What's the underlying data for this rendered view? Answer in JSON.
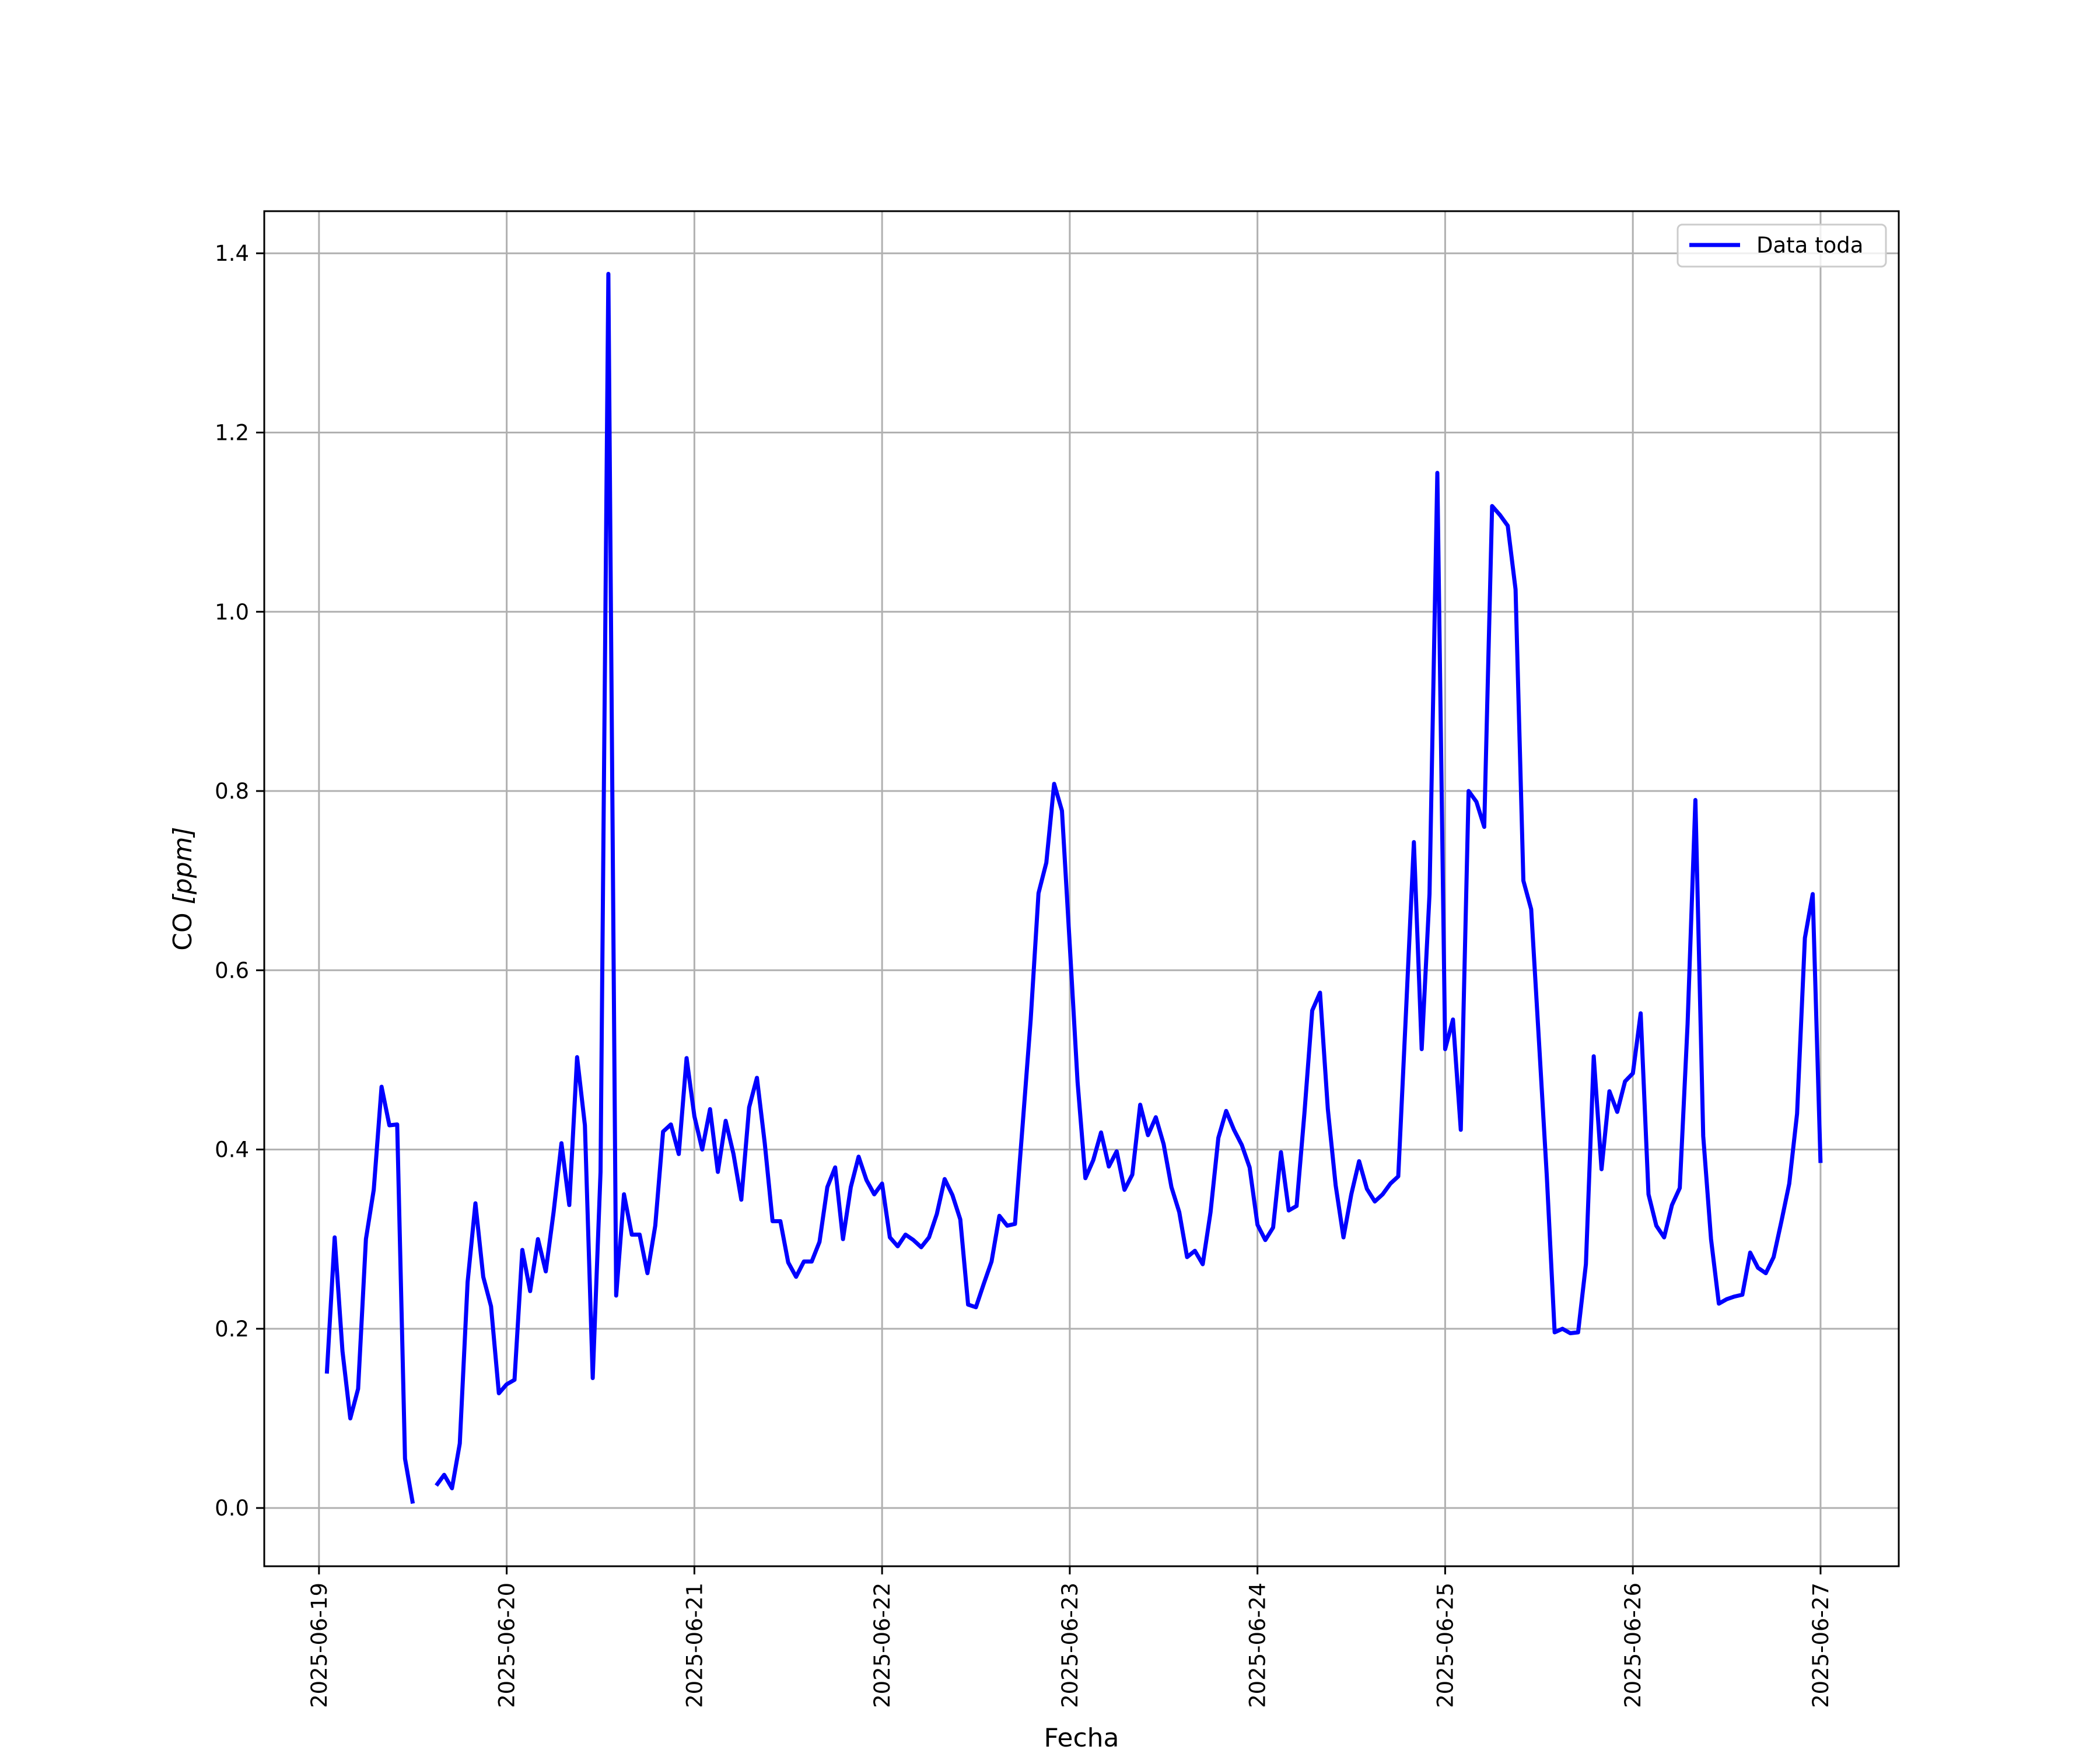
{
  "chart_data": {
    "type": "line",
    "title": "",
    "xlabel": "Fecha",
    "ylabel_main": "CO ",
    "ylabel_unit": "[ppm]",
    "x_ticks": [
      "2025-06-19",
      "2025-06-20",
      "2025-06-21",
      "2025-06-22",
      "2025-06-23",
      "2025-06-24",
      "2025-06-25",
      "2025-06-26",
      "2025-06-27"
    ],
    "y_ticks": [
      "0.0",
      "0.2",
      "0.4",
      "0.6",
      "0.8",
      "1.0",
      "1.2",
      "1.4"
    ],
    "xlim": [
      "2025-06-18 17:00",
      "2025-06-27 10:00"
    ],
    "ylim": [
      -0.065,
      1.447
    ],
    "grid": true,
    "legend_position": "top-right",
    "line_color": "#0000ff",
    "series": [
      {
        "name": "Data toda",
        "color": "#0000ff",
        "points": [
          [
            "2025-06-19 01:00",
            0.15
          ],
          [
            "2025-06-19 02:00",
            0.302
          ],
          [
            "2025-06-19 03:00",
            0.175
          ],
          [
            "2025-06-19 04:00",
            0.1
          ],
          [
            "2025-06-19 05:00",
            0.133
          ],
          [
            "2025-06-19 06:00",
            0.3
          ],
          [
            "2025-06-19 07:00",
            0.355
          ],
          [
            "2025-06-19 08:00",
            0.47
          ],
          [
            "2025-06-19 09:00",
            0.427
          ],
          [
            "2025-06-19 10:00",
            0.428
          ],
          [
            "2025-06-19 11:00",
            0.055
          ],
          [
            "2025-06-19 12:00",
            0.005
          ],
          [
            "2025-06-19 15:00",
            null
          ],
          [
            "2025-06-19 15:00",
            0.025
          ],
          [
            "2025-06-19 16:00",
            0.037
          ],
          [
            "2025-06-19 17:00",
            0.022
          ],
          [
            "2025-06-19 18:00",
            0.072
          ],
          [
            "2025-06-19 19:00",
            0.252
          ],
          [
            "2025-06-19 20:00",
            0.34
          ],
          [
            "2025-06-19 21:00",
            0.258
          ],
          [
            "2025-06-19 22:00",
            0.225
          ],
          [
            "2025-06-19 23:00",
            0.128
          ],
          [
            "2025-06-20 00:00",
            0.138
          ],
          [
            "2025-06-20 01:00",
            0.143
          ],
          [
            "2025-06-20 02:00",
            0.288
          ],
          [
            "2025-06-20 03:00",
            0.242
          ],
          [
            "2025-06-20 04:00",
            0.3
          ],
          [
            "2025-06-20 05:00",
            0.264
          ],
          [
            "2025-06-20 06:00",
            0.33
          ],
          [
            "2025-06-20 07:00",
            0.407
          ],
          [
            "2025-06-20 08:00",
            0.338
          ],
          [
            "2025-06-20 09:00",
            0.503
          ],
          [
            "2025-06-20 10:00",
            0.427
          ],
          [
            "2025-06-20 11:00",
            0.145
          ],
          [
            "2025-06-20 12:00",
            0.375
          ],
          [
            "2025-06-20 13:00",
            1.377
          ],
          [
            "2025-06-20 14:00",
            0.237
          ],
          [
            "2025-06-20 15:00",
            0.35
          ],
          [
            "2025-06-20 16:00",
            0.305
          ],
          [
            "2025-06-20 17:00",
            0.305
          ],
          [
            "2025-06-20 18:00",
            0.262
          ],
          [
            "2025-06-20 19:00",
            0.315
          ],
          [
            "2025-06-20 20:00",
            0.42
          ],
          [
            "2025-06-20 21:00",
            0.428
          ],
          [
            "2025-06-20 22:00",
            0.395
          ],
          [
            "2025-06-20 23:00",
            0.502
          ],
          [
            "2025-06-21 00:00",
            0.437
          ],
          [
            "2025-06-21 01:00",
            0.4
          ],
          [
            "2025-06-21 02:00",
            0.445
          ],
          [
            "2025-06-21 03:00",
            0.375
          ],
          [
            "2025-06-21 04:00",
            0.432
          ],
          [
            "2025-06-21 05:00",
            0.395
          ],
          [
            "2025-06-21 06:00",
            0.344
          ],
          [
            "2025-06-21 07:00",
            0.447
          ],
          [
            "2025-06-21 08:00",
            0.48
          ],
          [
            "2025-06-21 09:00",
            0.407
          ],
          [
            "2025-06-21 10:00",
            0.32
          ],
          [
            "2025-06-21 11:00",
            0.32
          ],
          [
            "2025-06-21 12:00",
            0.274
          ],
          [
            "2025-06-21 13:00",
            0.258
          ],
          [
            "2025-06-21 14:00",
            0.275
          ],
          [
            "2025-06-21 15:00",
            0.275
          ],
          [
            "2025-06-21 16:00",
            0.297
          ],
          [
            "2025-06-21 17:00",
            0.358
          ],
          [
            "2025-06-21 18:00",
            0.38
          ],
          [
            "2025-06-21 19:00",
            0.3
          ],
          [
            "2025-06-21 20:00",
            0.358
          ],
          [
            "2025-06-21 21:00",
            0.392
          ],
          [
            "2025-06-21 22:00",
            0.366
          ],
          [
            "2025-06-21 23:00",
            0.35
          ],
          [
            "2025-06-22 00:00",
            0.362
          ],
          [
            "2025-06-22 01:00",
            0.302
          ],
          [
            "2025-06-22 02:00",
            0.292
          ],
          [
            "2025-06-22 03:00",
            0.305
          ],
          [
            "2025-06-22 04:00",
            0.299
          ],
          [
            "2025-06-22 05:00",
            0.291
          ],
          [
            "2025-06-22 06:00",
            0.302
          ],
          [
            "2025-06-22 07:00",
            0.328
          ],
          [
            "2025-06-22 08:00",
            0.367
          ],
          [
            "2025-06-22 09:00",
            0.349
          ],
          [
            "2025-06-22 10:00",
            0.322
          ],
          [
            "2025-06-22 11:00",
            0.227
          ],
          [
            "2025-06-22 12:00",
            0.224
          ],
          [
            "2025-06-22 13:00",
            0.25
          ],
          [
            "2025-06-22 14:00",
            0.275
          ],
          [
            "2025-06-22 15:00",
            0.326
          ],
          [
            "2025-06-22 16:00",
            0.315
          ],
          [
            "2025-06-22 17:00",
            0.317
          ],
          [
            "2025-06-22 18:00",
            0.43
          ],
          [
            "2025-06-22 19:00",
            0.545
          ],
          [
            "2025-06-22 20:00",
            0.686
          ],
          [
            "2025-06-22 21:00",
            0.72
          ],
          [
            "2025-06-22 22:00",
            0.808
          ],
          [
            "2025-06-22 23:00",
            0.778
          ],
          [
            "2025-06-23 00:00",
            0.628
          ],
          [
            "2025-06-23 01:00",
            0.475
          ],
          [
            "2025-06-23 02:00",
            0.368
          ],
          [
            "2025-06-23 03:00",
            0.388
          ],
          [
            "2025-06-23 04:00",
            0.419
          ],
          [
            "2025-06-23 05:00",
            0.381
          ],
          [
            "2025-06-23 06:00",
            0.398
          ],
          [
            "2025-06-23 07:00",
            0.355
          ],
          [
            "2025-06-23 08:00",
            0.372
          ],
          [
            "2025-06-23 09:00",
            0.45
          ],
          [
            "2025-06-23 10:00",
            0.416
          ],
          [
            "2025-06-23 11:00",
            0.436
          ],
          [
            "2025-06-23 12:00",
            0.406
          ],
          [
            "2025-06-23 13:00",
            0.358
          ],
          [
            "2025-06-23 14:00",
            0.33
          ],
          [
            "2025-06-23 15:00",
            0.28
          ],
          [
            "2025-06-23 16:00",
            0.287
          ],
          [
            "2025-06-23 17:00",
            0.272
          ],
          [
            "2025-06-23 18:00",
            0.33
          ],
          [
            "2025-06-23 19:00",
            0.413
          ],
          [
            "2025-06-23 20:00",
            0.443
          ],
          [
            "2025-06-23 21:00",
            0.422
          ],
          [
            "2025-06-23 22:00",
            0.405
          ],
          [
            "2025-06-23 23:00",
            0.38
          ],
          [
            "2025-06-24 00:00",
            0.316
          ],
          [
            "2025-06-24 01:00",
            0.299
          ],
          [
            "2025-06-24 02:00",
            0.313
          ],
          [
            "2025-06-24 03:00",
            0.397
          ],
          [
            "2025-06-24 04:00",
            0.332
          ],
          [
            "2025-06-24 05:00",
            0.337
          ],
          [
            "2025-06-24 06:00",
            0.44
          ],
          [
            "2025-06-24 07:00",
            0.555
          ],
          [
            "2025-06-24 08:00",
            0.575
          ],
          [
            "2025-06-24 09:00",
            0.445
          ],
          [
            "2025-06-24 10:00",
            0.36
          ],
          [
            "2025-06-24 11:00",
            0.302
          ],
          [
            "2025-06-24 12:00",
            0.35
          ],
          [
            "2025-06-24 13:00",
            0.387
          ],
          [
            "2025-06-24 14:00",
            0.356
          ],
          [
            "2025-06-24 15:00",
            0.342
          ],
          [
            "2025-06-24 16:00",
            0.35
          ],
          [
            "2025-06-24 17:00",
            0.362
          ],
          [
            "2025-06-24 18:00",
            0.37
          ],
          [
            "2025-06-24 19:00",
            0.555
          ],
          [
            "2025-06-24 20:00",
            0.743
          ],
          [
            "2025-06-24 21:00",
            0.512
          ],
          [
            "2025-06-24 22:00",
            0.685
          ],
          [
            "2025-06-24 23:00",
            1.155
          ],
          [
            "2025-06-25 00:00",
            0.512
          ],
          [
            "2025-06-25 01:00",
            0.545
          ],
          [
            "2025-06-25 02:00",
            0.422
          ],
          [
            "2025-06-25 03:00",
            0.8
          ],
          [
            "2025-06-25 04:00",
            0.788
          ],
          [
            "2025-06-25 05:00",
            0.76
          ],
          [
            "2025-06-25 06:00",
            1.118
          ],
          [
            "2025-06-25 07:00",
            1.108
          ],
          [
            "2025-06-25 08:00",
            1.096
          ],
          [
            "2025-06-25 09:00",
            1.025
          ],
          [
            "2025-06-25 10:00",
            0.7
          ],
          [
            "2025-06-25 11:00",
            0.668
          ],
          [
            "2025-06-25 12:00",
            0.52
          ],
          [
            "2025-06-25 13:00",
            0.37
          ],
          [
            "2025-06-25 14:00",
            0.196
          ],
          [
            "2025-06-25 15:00",
            0.2
          ],
          [
            "2025-06-25 16:00",
            0.195
          ],
          [
            "2025-06-25 17:00",
            0.196
          ],
          [
            "2025-06-25 18:00",
            0.272
          ],
          [
            "2025-06-25 19:00",
            0.504
          ],
          [
            "2025-06-25 20:00",
            0.378
          ],
          [
            "2025-06-25 21:00",
            0.465
          ],
          [
            "2025-06-25 22:00",
            0.442
          ],
          [
            "2025-06-25 23:00",
            0.476
          ],
          [
            "2025-06-26 00:00",
            0.485
          ],
          [
            "2025-06-26 01:00",
            0.552
          ],
          [
            "2025-06-26 02:00",
            0.35
          ],
          [
            "2025-06-26 03:00",
            0.315
          ],
          [
            "2025-06-26 04:00",
            0.302
          ],
          [
            "2025-06-26 05:00",
            0.338
          ],
          [
            "2025-06-26 06:00",
            0.357
          ],
          [
            "2025-06-26 07:00",
            0.54
          ],
          [
            "2025-06-26 08:00",
            0.79
          ],
          [
            "2025-06-26 09:00",
            0.415
          ],
          [
            "2025-06-26 10:00",
            0.3
          ],
          [
            "2025-06-26 11:00",
            0.228
          ],
          [
            "2025-06-26 12:00",
            0.233
          ],
          [
            "2025-06-26 13:00",
            0.236
          ],
          [
            "2025-06-26 14:00",
            0.238
          ],
          [
            "2025-06-26 15:00",
            0.285
          ],
          [
            "2025-06-26 16:00",
            0.268
          ],
          [
            "2025-06-26 17:00",
            0.262
          ],
          [
            "2025-06-26 18:00",
            0.28
          ],
          [
            "2025-06-26 19:00",
            0.32
          ],
          [
            "2025-06-26 20:00",
            0.362
          ],
          [
            "2025-06-26 21:00",
            0.44
          ],
          [
            "2025-06-26 22:00",
            0.636
          ],
          [
            "2025-06-26 23:00",
            0.685
          ],
          [
            "2025-06-27 00:00",
            0.385
          ]
        ]
      }
    ]
  }
}
